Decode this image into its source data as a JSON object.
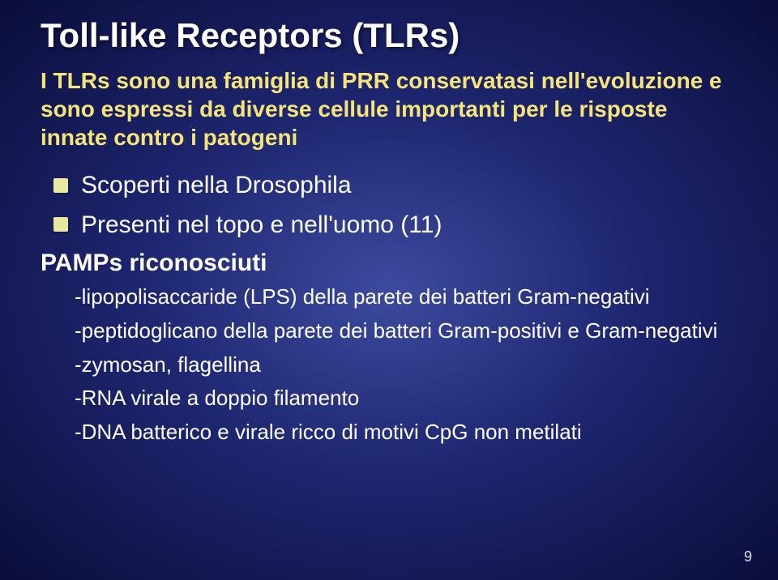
{
  "title": {
    "text": "Toll-like Receptors (TLRs)",
    "fontsize": 42,
    "color": "#ffffff"
  },
  "intro": {
    "text": "I TLRs sono una famiglia di PRR conservatasi nell'evoluzione e sono espressi da diverse cellule importanti per le risposte innate contro i patogeni",
    "fontsize": 28,
    "color": "#f5e47a"
  },
  "main_points": [
    "Scoperti  nella Drosophila",
    "Presenti nel topo e nell'uomo (11)"
  ],
  "main_fontsize": 30,
  "subheading": {
    "text": "PAMPs riconosciuti",
    "fontsize": 30
  },
  "sub_points": [
    "-lipopolisaccaride (LPS) della parete dei batteri Gram-negativi",
    "-peptidoglicano della parete dei batteri Gram-positivi e Gram-negativi",
    "-zymosan,  flagellina",
    "-RNA  virale a doppio filamento",
    "-DNA batterico  e virale ricco di motivi CpG non metilati"
  ],
  "sub_fontsize": 26,
  "page_number": "9",
  "page_number_fontsize": 18,
  "colors": {
    "bg_center": "#3d4a9e",
    "bg_mid": "#1e2670",
    "bg_edge": "#0a0d3a",
    "text": "#ffffff",
    "accent": "#f5e47a",
    "bullet": "#e8e8a0"
  }
}
